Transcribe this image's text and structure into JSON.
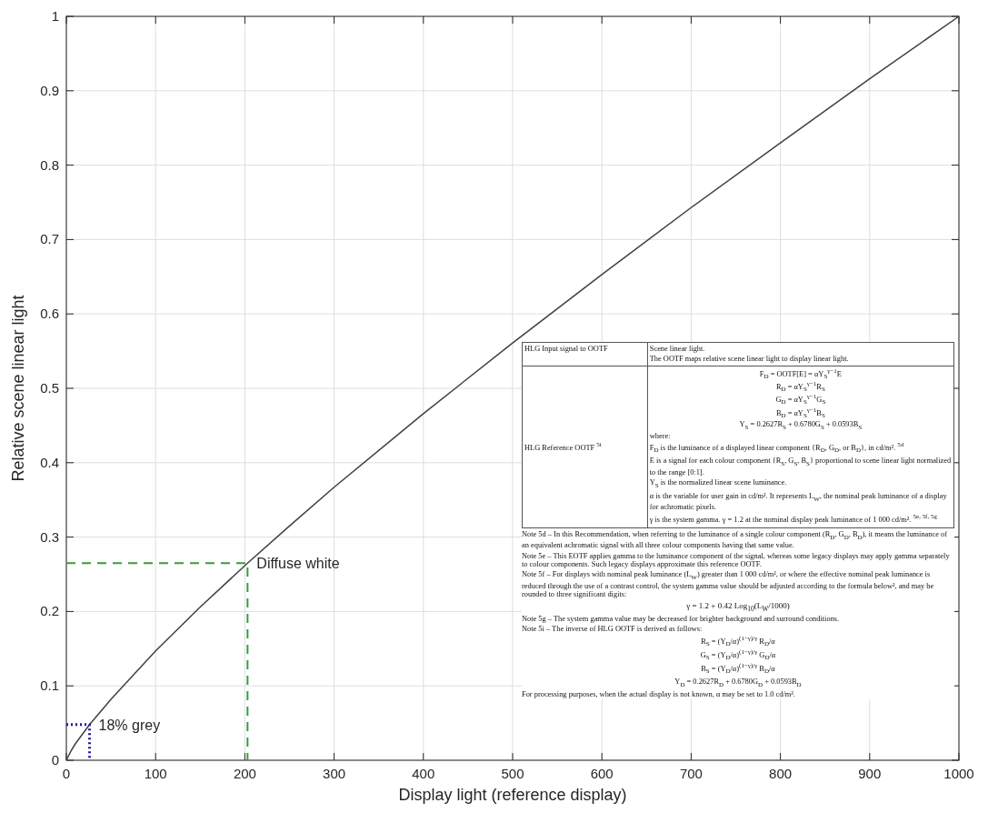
{
  "chart_data": {
    "type": "line",
    "xlabel": "Display light (reference display)",
    "ylabel": "Relative scene linear light",
    "xlim": [
      0,
      1000
    ],
    "ylim": [
      0,
      1
    ],
    "xticks": [
      0,
      100,
      200,
      300,
      400,
      500,
      600,
      700,
      800,
      900,
      1000
    ],
    "yticks": [
      0,
      0.1,
      0.2,
      0.3,
      0.4,
      0.5,
      0.6,
      0.7,
      0.8,
      0.9,
      1
    ],
    "grid": true,
    "series": [
      {
        "color": "#404040",
        "line_style": "solid",
        "x": [
          0,
          5,
          10,
          26,
          50,
          100,
          150,
          203,
          250,
          300,
          400,
          500,
          600,
          700,
          800,
          900,
          1000
        ],
        "values": [
          0,
          0.012,
          0.022,
          0.048,
          0.082,
          0.147,
          0.206,
          0.265,
          0.315,
          0.367,
          0.466,
          0.561,
          0.653,
          0.743,
          0.83,
          0.916,
          1
        ]
      },
      {
        "color": "#3a9a3a",
        "line_style": "dashed",
        "x": [
          0,
          203,
          203
        ],
        "values": [
          0.265,
          0.265,
          0
        ]
      },
      {
        "color": "#1a1aa0",
        "line_style": "dotted",
        "x": [
          0,
          26,
          26
        ],
        "values": [
          0.048,
          0.048,
          0
        ]
      }
    ],
    "annotations": [
      {
        "text": "Diffuse white",
        "x": 203,
        "y": 0.265
      },
      {
        "text": "18% grey",
        "x": 26,
        "y": 0.048
      },
      "HLG Input signal to OOTF",
      "Scene linear light.",
      "The OOTF maps relative scene linear light to display linear light.",
      "HLG Reference OOTF $^{5i}$",
      "F$_{D}$ = OOTF[E] = αY$_{S}$$^{γ−1}$E",
      "R$_{D}$ = αY$_{S}$$^{γ−1}$R$_{S}$",
      "G$_{D}$ = αY$_{S}$$^{γ−1}$G$_{S}$",
      "B$_{D}$ = αY$_{S}$$^{γ−1}$B$_{S}$",
      "Y$_{S}$ = 0.2627R$_{S}$ + 0.6780G$_{S}$ + 0.0593B$_{S}$",
      "where:",
      "F$_{D}$ is the luminance of a displayed linear component {R$_{D}$, G$_{D}$, or B$_{D}$}, in cd/m². $^{5d}$",
      "E is a signal for each colour component {R$_{S}$, G$_{S}$, B$_{S}$} proportional to scene linear light normalized to the range [0:1].",
      "Y$_{S}$ is the normalized linear scene luminance.",
      "α is the variable for user gain in cd/m². It represents L$_{W}$, the nominal peak luminance of a display for achromatic pixels.",
      "γ is the system gamma. γ = 1.2 at the nominal display peak luminance of 1 000 cd/m². $^{5e, 5f, 5g}$",
      "Note 5d – In this Recommendation, when referring to the luminance of a single colour component (R$_{D}$, G$_{D}$, B$_{D}$), it means the luminance of an equivalent achromatic signal with all three colour components having that same value.",
      "Note 5e – This EOTF applies gamma to the luminance component of the signal, whereas some legacy displays may apply gamma separately to colour components. Such legacy displays approximate this reference OOTF.",
      "Note 5f – For displays with nominal peak luminance (L$_{W}$) greater than 1 000 cd/m², or where the effective nominal peak luminance is reduced through the use of a contrast control, the system gamma value should be adjusted according to the formula below², and may be rounded to three significant digits:",
      "γ = 1.2 + 0.42 Log$_{10}$(L$_{W}$/1000)",
      "Note 5g – The system gamma value may be decreased for brighter background and surround conditions.",
      "Note 5i – The inverse of HLG OOTF is derived as follows:",
      "R$_{S}$ = (Y$_{D}$/α)$^{(1−γ)/γ}$ R$_{D}$/α",
      "G$_{S}$ = (Y$_{D}$/α)$^{(1−γ)/γ}$ G$_{D}$/α",
      "B$_{S}$ = (Y$_{D}$/α)$^{(1−γ)/γ}$ B$_{D}$/α",
      "Y$_{D}$ = 0.2627R$_{D}$ + 0.6780G$_{D}$ + 0.0593B$_{D}$",
      "For processing purposes, when the actual display is not known, α may be set to 1.0 cd/m²."
    ]
  }
}
